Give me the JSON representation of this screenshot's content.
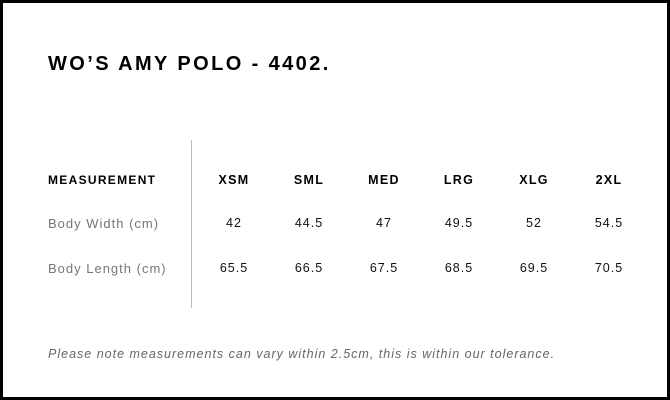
{
  "title": "WO’S AMY POLO - 4402.",
  "table": {
    "header_label": "MEASUREMENT",
    "sizes": [
      "XSM",
      "SML",
      "MED",
      "LRG",
      "XLG",
      "2XL"
    ],
    "rows": [
      {
        "label": "Body Width (cm)",
        "values": [
          "42",
          "44.5",
          "47",
          "49.5",
          "52",
          "54.5"
        ]
      },
      {
        "label": "Body Length (cm)",
        "values": [
          "65.5",
          "66.5",
          "67.5",
          "68.5",
          "69.5",
          "70.5"
        ]
      }
    ]
  },
  "note": "Please note measurements can vary within 2.5cm, this is within our tolerance."
}
